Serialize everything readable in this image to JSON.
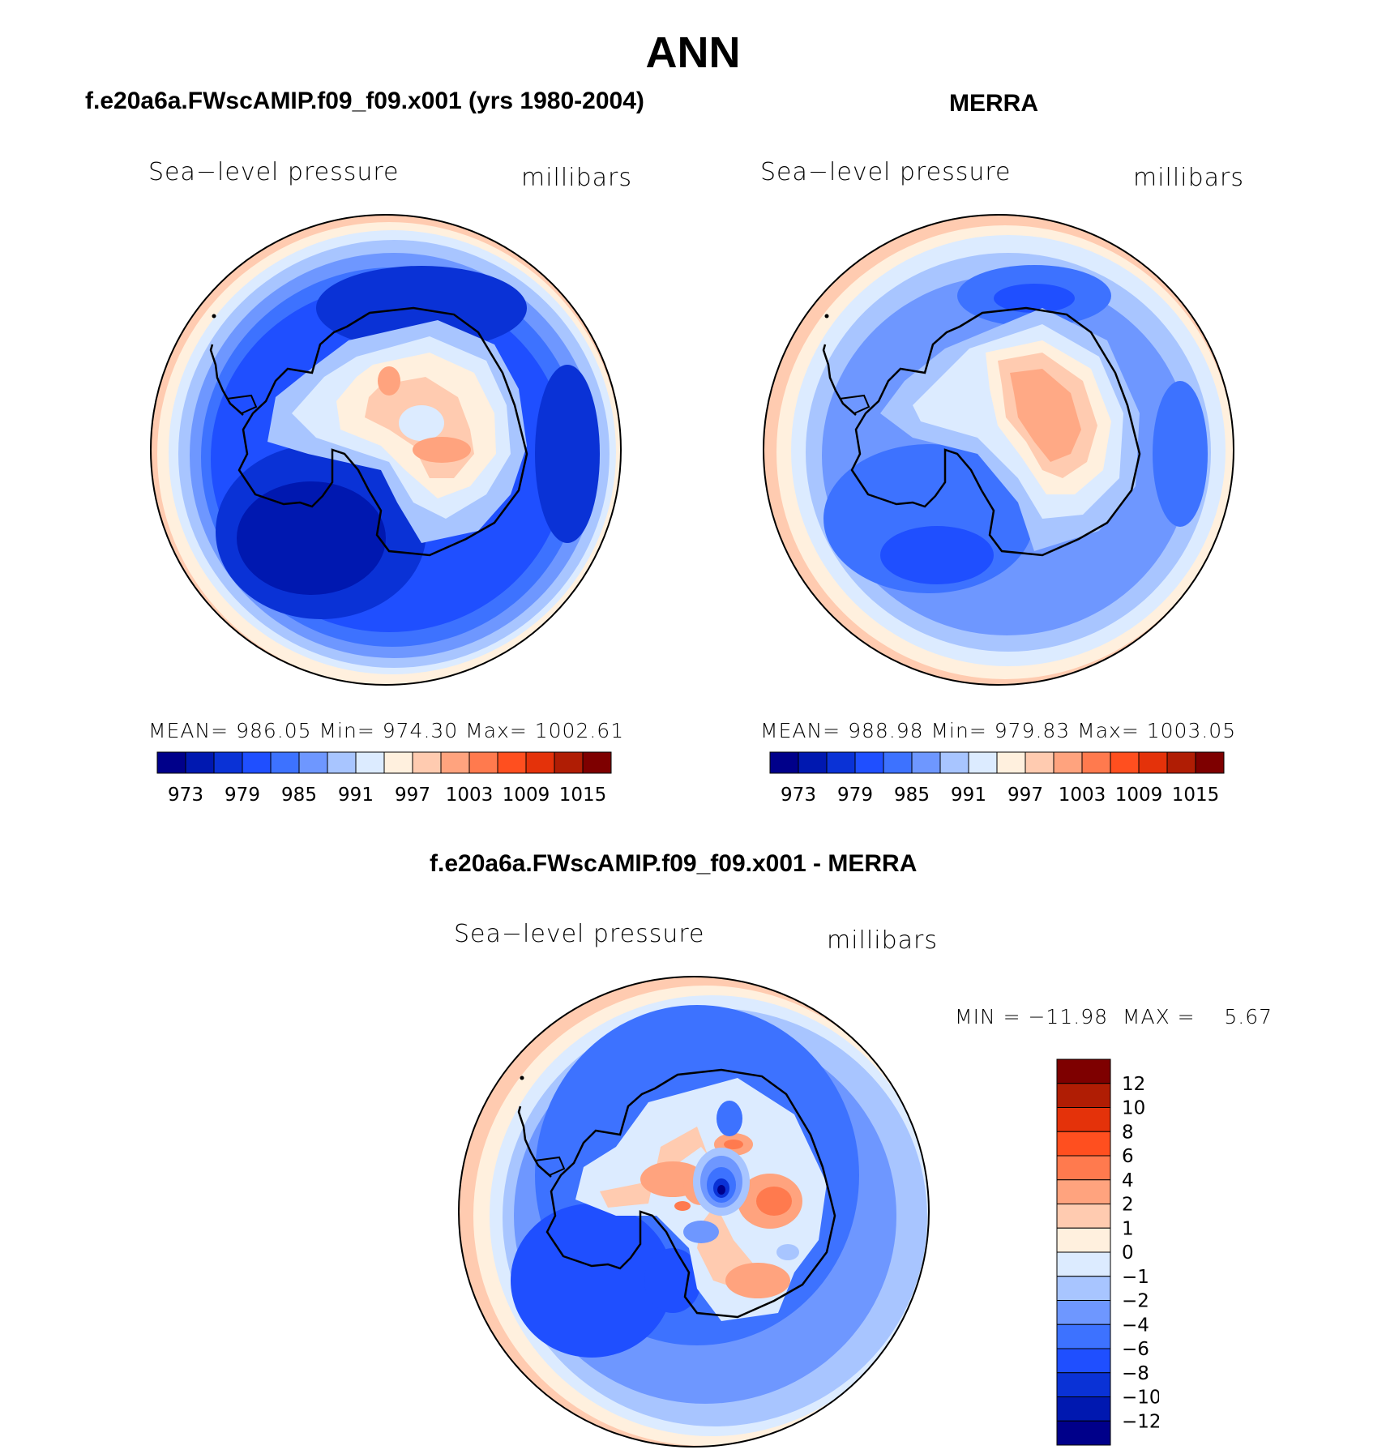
{
  "main_title": "ANN",
  "left_panel": {
    "title": "f.e20a6a.FWscAMIP.f09_f09.x001 (yrs 1980-2004)",
    "variable": "Sea−level pressure",
    "units": "millibars",
    "stats": "MEAN= 986.05   Min= 974.30   Max= 1002.61"
  },
  "right_panel": {
    "title": "MERRA",
    "variable": "Sea−level pressure",
    "units": "millibars",
    "stats": "MEAN= 988.98   Min= 979.83   Max= 1003.05"
  },
  "diff_panel": {
    "title": "f.e20a6a.FWscAMIP.f09_f09.x001 - MERRA",
    "variable": "Sea−level pressure",
    "units": "millibars",
    "stats": "MIN = −11.98  MAX =    5.67"
  },
  "colorbar_abs": {
    "labels": [
      "973",
      "979",
      "985",
      "991",
      "997",
      "1003",
      "1009",
      "1015"
    ],
    "colors": [
      "#00008a",
      "#0018b0",
      "#0a32d6",
      "#1f4fff",
      "#3d72ff",
      "#6e97ff",
      "#a8c5ff",
      "#dcebff",
      "#fff0de",
      "#ffcbb0",
      "#ffa37e",
      "#ff7a4e",
      "#ff4f1f",
      "#e4320a",
      "#b01d04",
      "#7e0000"
    ]
  },
  "colorbar_diff": {
    "labels": [
      "12",
      "10",
      "8",
      "6",
      "4",
      "2",
      "1",
      "0",
      "−1",
      "−2",
      "−4",
      "−6",
      "−8",
      "−10",
      "−12"
    ],
    "colors": [
      "#7e0000",
      "#b01d04",
      "#e4320a",
      "#ff4f1f",
      "#ff7a4e",
      "#ffa37e",
      "#ffcbb0",
      "#fff0de",
      "#dcebff",
      "#a8c5ff",
      "#6e97ff",
      "#3d72ff",
      "#1f4fff",
      "#0a32d6",
      "#0018b0",
      "#00008a"
    ]
  }
}
